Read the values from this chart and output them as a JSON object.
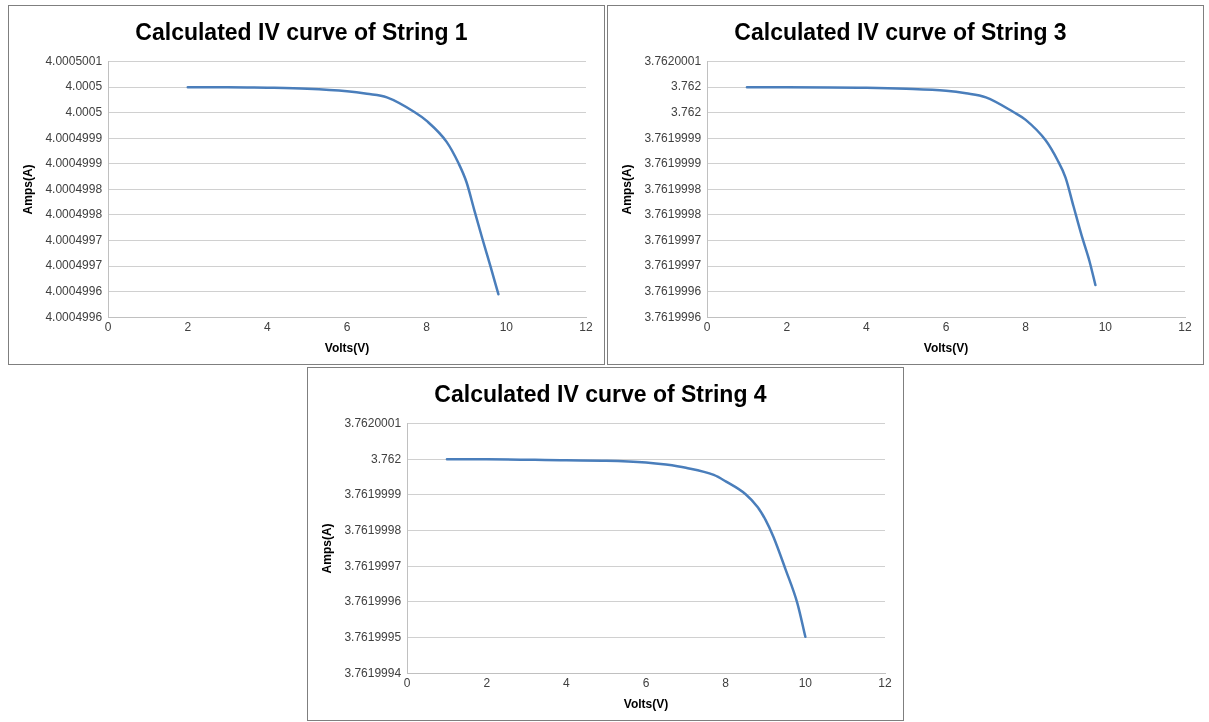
{
  "chart_data": [
    {
      "type": "line",
      "title": "Calculated IV curve of String 1",
      "xlabel": "Volts(V)",
      "ylabel": "Amps(A)",
      "grid": "y",
      "legend": false,
      "marker": "none",
      "line_style": "solid",
      "xlim": [
        0,
        12
      ],
      "xticks": [
        0,
        2,
        4,
        6,
        8,
        10,
        12
      ],
      "ylim": [
        4.0004996,
        4.0005001
      ],
      "yticks": [
        {
          "value": 4.0004996,
          "label": "4.0004996"
        },
        {
          "value": 4.00049965,
          "label": "4.0004996"
        },
        {
          "value": 4.0004997,
          "label": "4.0004997"
        },
        {
          "value": 4.00049975,
          "label": "4.0004997"
        },
        {
          "value": 4.0004998,
          "label": "4.0004998"
        },
        {
          "value": 4.00049985,
          "label": "4.0004998"
        },
        {
          "value": 4.0004999,
          "label": "4.0004999"
        },
        {
          "value": 4.00049995,
          "label": "4.0004999"
        },
        {
          "value": 4.0005,
          "label": "4.0005"
        },
        {
          "value": 4.00050005,
          "label": "4.0005"
        },
        {
          "value": 4.0005001,
          "label": "4.0005001"
        }
      ],
      "series": [
        {
          "color": "#4a7ebb",
          "x": [
            2,
            3,
            4,
            5,
            6,
            6.5,
            7,
            7.7,
            8,
            8.5,
            8.8,
            9,
            9.2,
            9.4,
            9.6,
            9.8
          ],
          "values": [
            4.00050005,
            4.00050005,
            4.000500049,
            4.000500047,
            4.000500042,
            4.000500037,
            4.00050003,
            4.000500001,
            4.000499984,
            4.000499943,
            4.000499901,
            4.000499864,
            4.000499808,
            4.000499753,
            4.0004997,
            4.000499645
          ]
        }
      ]
    },
    {
      "type": "line",
      "title": "Calculated IV curve of String 3",
      "xlabel": "Volts(V)",
      "ylabel": "Amps(A)",
      "grid": "y",
      "legend": false,
      "marker": "none",
      "line_style": "solid",
      "xlim": [
        0,
        12
      ],
      "xticks": [
        0,
        2,
        4,
        6,
        8,
        10,
        12
      ],
      "ylim": [
        3.7619996,
        3.7620001
      ],
      "yticks": [
        {
          "value": 3.7619996,
          "label": "3.7619996"
        },
        {
          "value": 3.76199965,
          "label": "3.7619996"
        },
        {
          "value": 3.7619997,
          "label": "3.7619997"
        },
        {
          "value": 3.76199975,
          "label": "3.7619997"
        },
        {
          "value": 3.7619998,
          "label": "3.7619998"
        },
        {
          "value": 3.76199985,
          "label": "3.7619998"
        },
        {
          "value": 3.7619999,
          "label": "3.7619999"
        },
        {
          "value": 3.76199995,
          "label": "3.7619999"
        },
        {
          "value": 3.762,
          "label": "3.762"
        },
        {
          "value": 3.76200005,
          "label": "3.762"
        },
        {
          "value": 3.7620001,
          "label": "3.7620001"
        }
      ],
      "series": [
        {
          "color": "#4a7ebb",
          "x": [
            1,
            2,
            4,
            5,
            6,
            6.5,
            7,
            7.7,
            8,
            8.5,
            8.8,
            9,
            9.2,
            9.4,
            9.6,
            9.75
          ],
          "values": [
            3.76200005,
            3.76200005,
            3.762000049,
            3.762000047,
            3.762000043,
            3.762000038,
            3.76200003,
            3.762000001,
            3.761999986,
            3.761999946,
            3.761999907,
            3.761999873,
            3.761999817,
            3.761999761,
            3.76199971,
            3.761999663
          ]
        }
      ]
    },
    {
      "type": "line",
      "title": "Calculated IV curve of String 4",
      "xlabel": "Volts(V)",
      "ylabel": "Amps(A)",
      "grid": "y",
      "legend": false,
      "marker": "none",
      "line_style": "solid",
      "xlim": [
        0,
        12
      ],
      "xticks": [
        0,
        2,
        4,
        6,
        8,
        10,
        12
      ],
      "ylim": [
        3.7619994,
        3.7620001
      ],
      "yticks": [
        {
          "value": 3.7619994,
          "label": "3.7619994"
        },
        {
          "value": 3.7619995,
          "label": "3.7619995"
        },
        {
          "value": 3.7619996,
          "label": "3.7619996"
        },
        {
          "value": 3.7619997,
          "label": "3.7619997"
        },
        {
          "value": 3.7619998,
          "label": "3.7619998"
        },
        {
          "value": 3.7619999,
          "label": "3.7619999"
        },
        {
          "value": 3.762,
          "label": "3.762"
        },
        {
          "value": 3.7620001,
          "label": "3.7620001"
        }
      ],
      "series": [
        {
          "color": "#4a7ebb",
          "x": [
            1,
            2,
            4,
            5,
            6,
            6.5,
            7,
            7.7,
            8,
            8.5,
            8.8,
            9,
            9.2,
            9.5,
            9.8,
            10
          ],
          "values": [
            3.762,
            3.762,
            3.761999997,
            3.761999996,
            3.761999991,
            3.761999985,
            3.761999976,
            3.761999956,
            3.761999938,
            3.761999902,
            3.761999866,
            3.76199983,
            3.761999782,
            3.761999692,
            3.761999596,
            3.761999502
          ]
        }
      ]
    }
  ]
}
